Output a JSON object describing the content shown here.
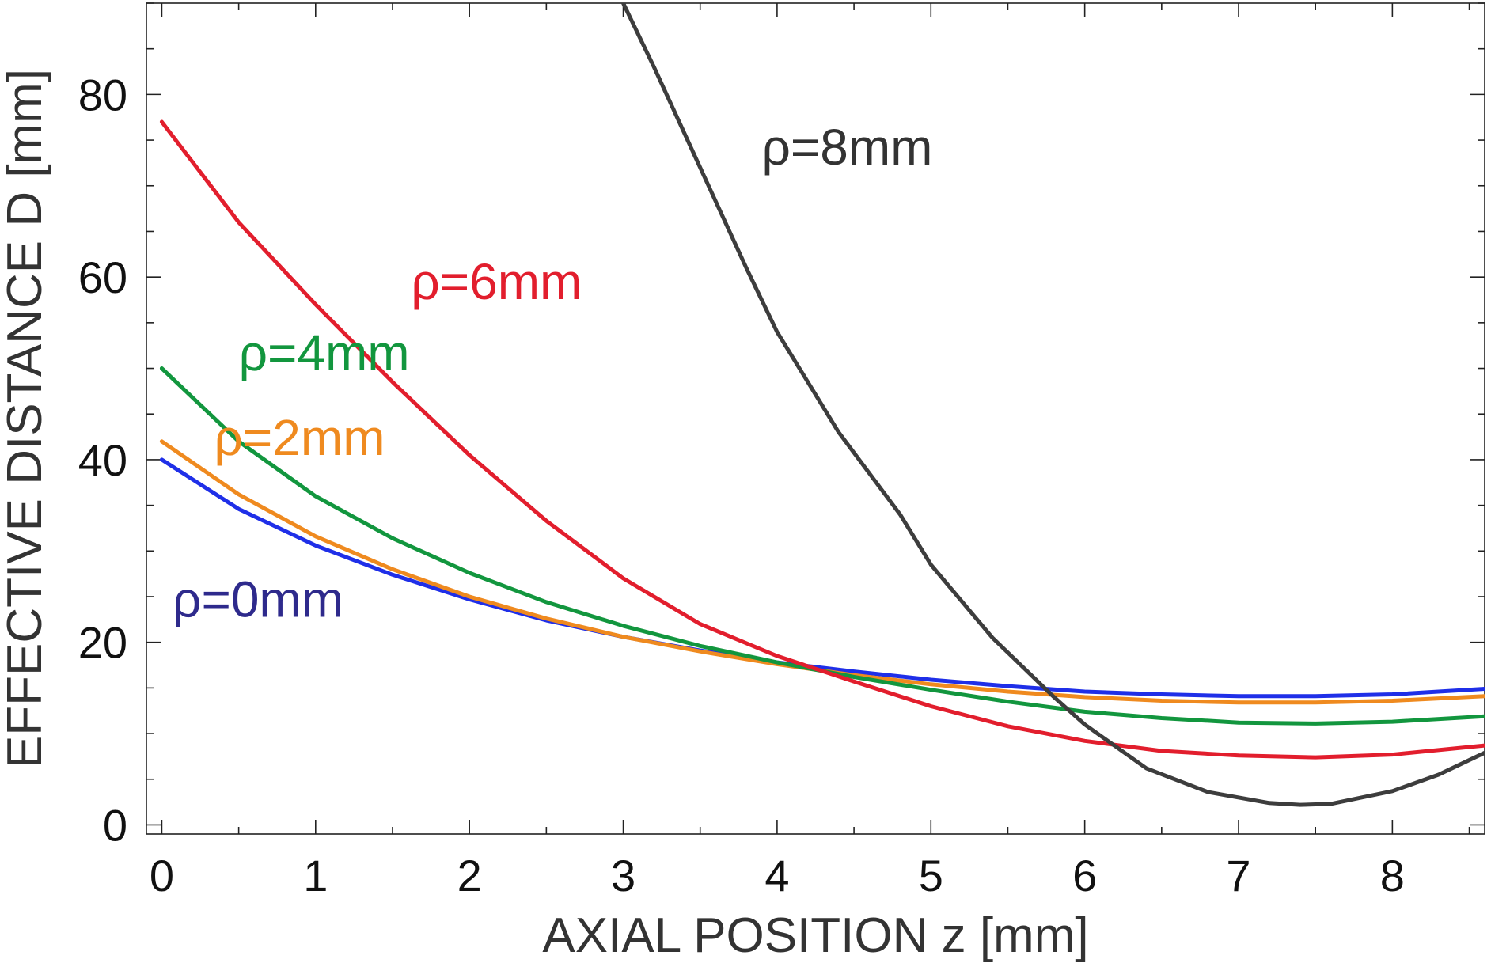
{
  "chart_data": {
    "type": "line",
    "title": "",
    "xlabel": "AXIAL POSITION z [mm]",
    "ylabel": "EFFECTIVE DISTANCE D [mm]",
    "xlim": [
      -0.1,
      8.6
    ],
    "ylim": [
      -1,
      90
    ],
    "xticks": [
      0,
      1,
      2,
      3,
      4,
      5,
      6,
      7,
      8
    ],
    "xtick_labels": [
      "0",
      "1",
      "2",
      "3",
      "4",
      "5",
      "6",
      "7",
      "8"
    ],
    "yticks": [
      0,
      20,
      40,
      60,
      80
    ],
    "ytick_labels": [
      "0",
      "20",
      "40",
      "60",
      "80"
    ],
    "grid": false,
    "series": [
      {
        "name": "ρ=0mm",
        "color": "#1f2fe8",
        "label_color": "#2e2a8c",
        "x": [
          0,
          0.5,
          1,
          1.5,
          2,
          2.5,
          3,
          3.5,
          4,
          4.5,
          5,
          5.5,
          6,
          6.5,
          7,
          7.5,
          8,
          8.6
        ],
        "values": [
          40,
          34.6,
          30.6,
          27.4,
          24.7,
          22.4,
          20.6,
          19.1,
          17.8,
          16.8,
          15.9,
          15.2,
          14.6,
          14.3,
          14.1,
          14.1,
          14.3,
          14.9
        ]
      },
      {
        "name": "ρ=2mm",
        "color": "#ef8a1f",
        "label_color": "#ef8a1f",
        "x": [
          0,
          0.5,
          1,
          1.5,
          2,
          2.5,
          3,
          3.5,
          4,
          4.5,
          5,
          5.5,
          6,
          6.5,
          7,
          7.5,
          8,
          8.6
        ],
        "values": [
          42,
          36.2,
          31.6,
          28,
          25,
          22.6,
          20.6,
          19,
          17.6,
          16.4,
          15.4,
          14.6,
          14,
          13.6,
          13.4,
          13.4,
          13.6,
          14.1
        ]
      },
      {
        "name": "ρ=4mm",
        "color": "#12963e",
        "label_color": "#12963e",
        "x": [
          0,
          0.5,
          1,
          1.5,
          2,
          2.5,
          3,
          3.5,
          4,
          4.5,
          5,
          5.5,
          6,
          6.5,
          7,
          7.5,
          8,
          8.6
        ],
        "values": [
          50,
          42,
          36,
          31.4,
          27.6,
          24.4,
          21.8,
          19.6,
          17.8,
          16.2,
          14.8,
          13.5,
          12.4,
          11.7,
          11.2,
          11.1,
          11.3,
          11.9
        ]
      },
      {
        "name": "ρ=6mm",
        "color": "#e21e2d",
        "label_color": "#e21e2d",
        "x": [
          0,
          0.5,
          1,
          1.5,
          2,
          2.5,
          3,
          3.5,
          4,
          4.5,
          5,
          5.5,
          6,
          6.5,
          7,
          7.5,
          8,
          8.6
        ],
        "values": [
          77,
          66,
          57,
          48.5,
          40.5,
          33.3,
          27,
          22,
          18.5,
          15.7,
          13,
          10.8,
          9.2,
          8.1,
          7.6,
          7.4,
          7.7,
          8.7
        ]
      },
      {
        "name": "ρ=8mm",
        "color": "#3d3d3d",
        "label_color": "#333333",
        "x": [
          3,
          3.2,
          3.5,
          3.8,
          4,
          4.4,
          4.8,
          5,
          5.4,
          5.8,
          6,
          6.4,
          6.8,
          7.2,
          7.4,
          7.6,
          8,
          8.3,
          8.6
        ],
        "values": [
          90,
          83,
          72,
          61,
          54,
          43,
          34,
          28.5,
          20.5,
          14,
          11,
          6.2,
          3.6,
          2.4,
          2.2,
          2.3,
          3.7,
          5.5,
          7.9
        ]
      }
    ],
    "annotations": [
      {
        "text": "ρ=0mm",
        "series": 0,
        "x": 0.07,
        "y": 22.8
      },
      {
        "text": "ρ=2mm",
        "series": 1,
        "x": 0.34,
        "y": 40.5
      },
      {
        "text": "ρ=4mm",
        "series": 2,
        "x": 0.5,
        "y": 49.8
      },
      {
        "text": "ρ=6mm",
        "series": 3,
        "x": 1.62,
        "y": 57.6
      },
      {
        "text": "ρ=8mm",
        "series": 4,
        "x": 3.9,
        "y": 72.3
      }
    ]
  }
}
